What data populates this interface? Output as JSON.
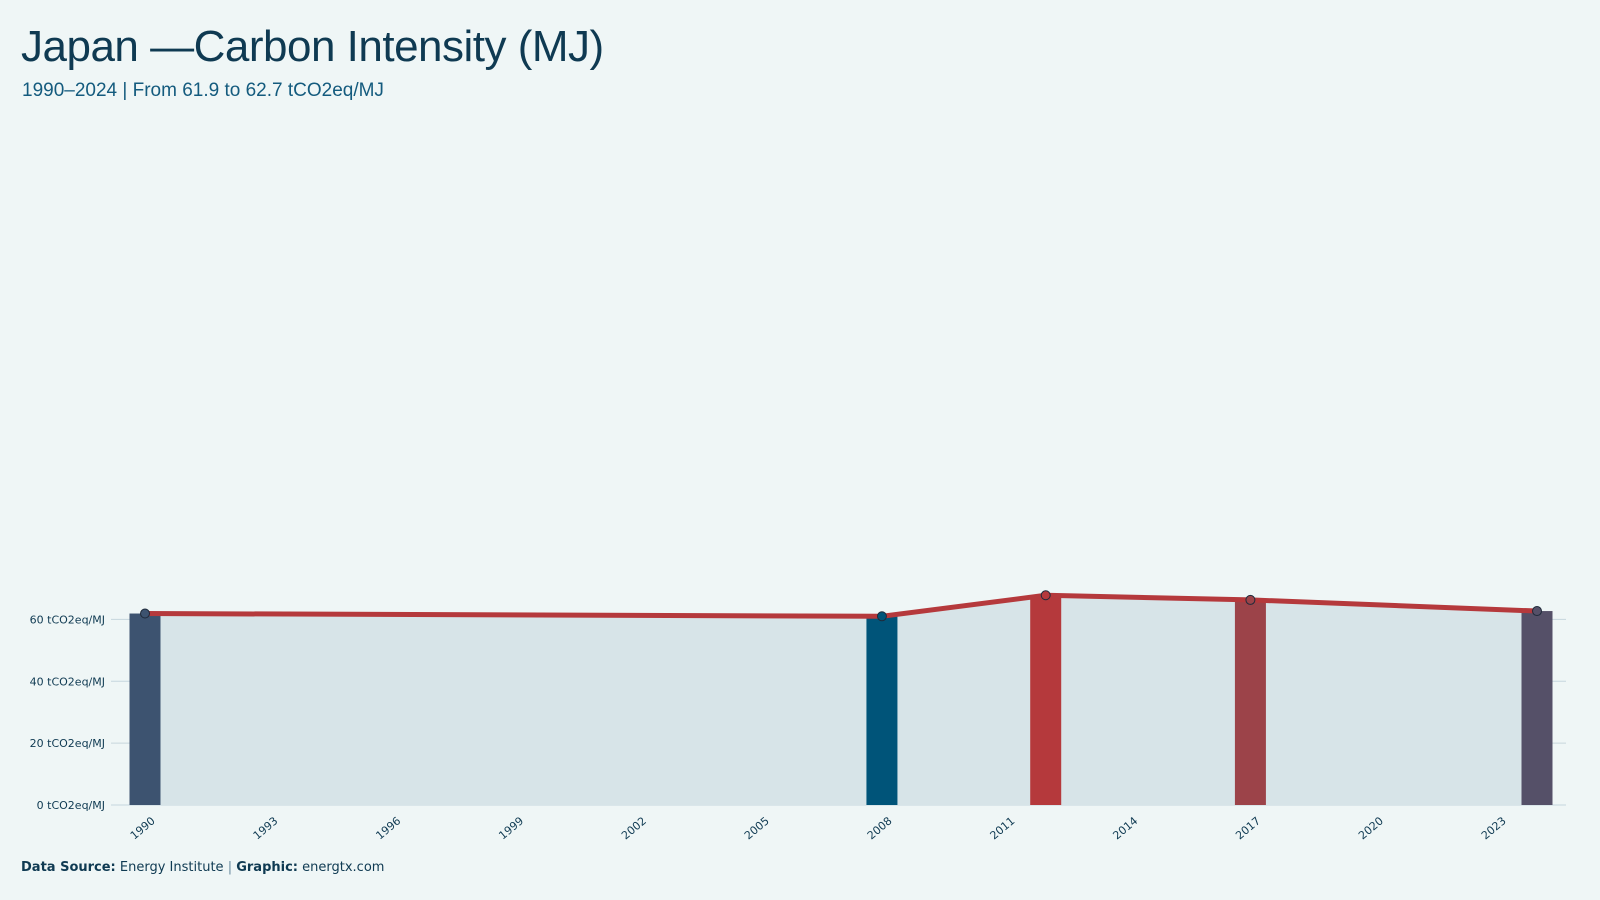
{
  "title": "Japan —Carbon Intensity (MJ)",
  "subtitle": "1990–2024 | From 61.9 to 62.7 tCO2eq/MJ",
  "footer": {
    "source_label": "Data Source:",
    "source_value": "Energy Institute",
    "separator": "|",
    "graphic_label": "Graphic:",
    "graphic_value": "energtx.com"
  },
  "colors": {
    "line": "#b5393c",
    "area": "#d7e4e8",
    "grid": "#c6d6dd",
    "background": "#eff6f6"
  },
  "chart_data": {
    "type": "bar",
    "title": "Japan —Carbon Intensity (MJ)",
    "xlabel": "",
    "ylabel": "",
    "unit": "tCO2eq/MJ",
    "xlim": [
      1990,
      2024
    ],
    "ylim": [
      0,
      72
    ],
    "y_ticks": [
      0,
      20,
      40,
      60
    ],
    "y_tick_labels": [
      "0 tCO2eq/MJ",
      "20 tCO2eq/MJ",
      "40 tCO2eq/MJ",
      "60 tCO2eq/MJ"
    ],
    "x_ticks": [
      1990,
      1993,
      1996,
      1999,
      2002,
      2005,
      2008,
      2011,
      2014,
      2017,
      2020,
      2023
    ],
    "grid": true,
    "points": [
      {
        "year": 1990,
        "value": 61.9,
        "bar_color": "#3d5370"
      },
      {
        "year": 2008,
        "value": 61.0,
        "bar_color": "#005479"
      },
      {
        "year": 2012,
        "value": 67.8,
        "bar_color": "#b5393c"
      },
      {
        "year": 2017,
        "value": 66.3,
        "bar_color": "#9c4349"
      },
      {
        "year": 2024,
        "value": 62.7,
        "bar_color": "#555068"
      }
    ]
  }
}
